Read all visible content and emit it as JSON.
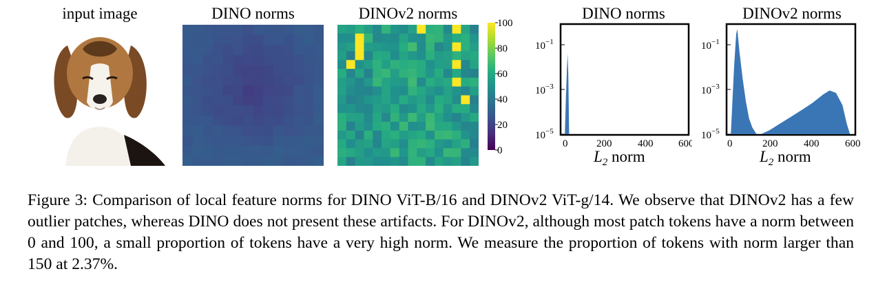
{
  "panels": {
    "input_title": "input image",
    "dino_map_title": "DINO norms",
    "dinov2_map_title": "DINOv2 norms",
    "dino_hist_title": "DINO norms",
    "dinov2_hist_title": "DINOv2 norms",
    "colorbar_ticks": [
      "100",
      "80",
      "60",
      "40",
      "20",
      "0"
    ]
  },
  "caption": "Figure 3: Comparison of local feature norms for DINO ViT-B/16 and DINOv2 ViT-g/14. We observe that DINOv2 has a few outlier patches, whereas DINO does not present these artifacts. For DINOv2, although most patch tokens have a norm between 0 and 100, a small proportion of tokens have a very high norm. We measure the proportion of tokens with norm larger than 150 at 2.37%.",
  "chart_data": [
    {
      "type": "heatmap",
      "title": "DINO norms",
      "colormap": "viridis",
      "zlim": [
        0,
        100
      ],
      "description_values": "uniformly low norms (approx. 20-30) across all patches"
    },
    {
      "type": "heatmap",
      "title": "DINOv2 norms",
      "colormap": "viridis",
      "zlim": [
        0,
        100
      ],
      "outlier_patch_value": 100
    },
    {
      "type": "area",
      "title": "DINO norms",
      "xlabel": "L2 norm",
      "xlim": [
        0,
        600
      ],
      "x_ticks": [
        "0",
        "200",
        "400",
        "600"
      ],
      "y_scale": "log",
      "y_ticks": [
        "10^-1",
        "10^-3",
        "10^-5"
      ],
      "series": [
        {
          "x": [
            20,
            25,
            30,
            33,
            36,
            40
          ],
          "y": [
            1e-05,
            0.0005,
            0.01,
            0.04,
            0.005,
            1e-05
          ]
        }
      ]
    },
    {
      "type": "area",
      "title": "DINOv2 norms",
      "xlabel": "L2 norm",
      "xlim": [
        0,
        600
      ],
      "x_ticks": [
        "0",
        "200",
        "400",
        "600"
      ],
      "y_scale": "log",
      "y_ticks": [
        "10^-1",
        "10^-3",
        "10^-5"
      ],
      "series": [
        {
          "x": [
            20,
            35,
            45,
            50,
            60,
            75,
            90,
            105,
            120,
            140,
            160,
            200,
            250,
            300,
            350,
            400,
            450,
            480,
            510,
            540,
            560,
            575
          ],
          "y": [
            1e-05,
            0.01,
            0.3,
            0.5,
            0.05,
            0.003,
            0.0003,
            5e-05,
            2e-05,
            1e-05,
            1e-05,
            1.5e-05,
            3e-05,
            6e-05,
            0.00012,
            0.00025,
            0.0006,
            0.0009,
            0.0007,
            0.0002,
            3e-05,
            1e-05
          ]
        }
      ]
    }
  ]
}
